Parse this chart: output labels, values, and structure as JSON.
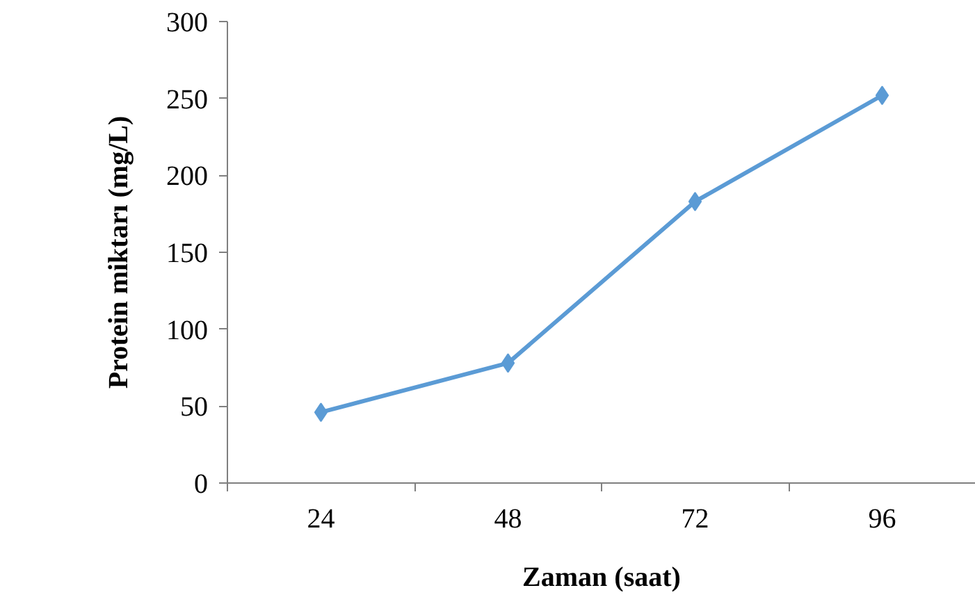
{
  "chart_data": {
    "type": "line",
    "xlabel": "Zaman (saat)",
    "ylabel": "Protein miktarı (mg/L)",
    "categories": [
      "24",
      "48",
      "72",
      "96"
    ],
    "series": [
      {
        "color": "#5b9bd5",
        "values": [
          46,
          78,
          183,
          252
        ]
      }
    ],
    "ylim": [
      0,
      300
    ],
    "yticks": [
      0,
      50,
      100,
      150,
      200,
      250,
      300
    ],
    "grid": false,
    "marker": "diamond",
    "line_style": "solid"
  }
}
